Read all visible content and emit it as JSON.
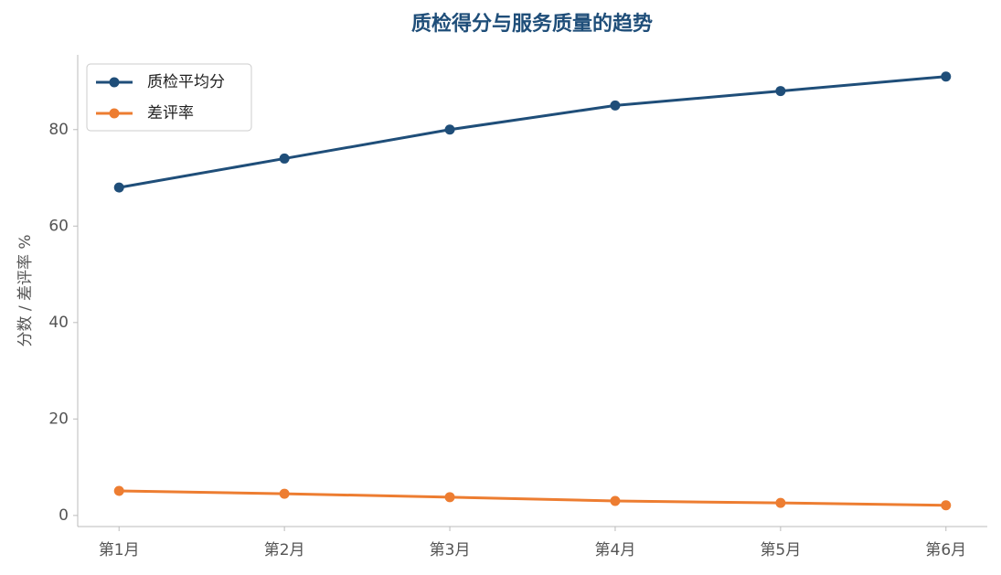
{
  "chart_data": {
    "type": "line",
    "title": "质检得分与服务质量的趋势",
    "y_label": "分数 / 差评率 %",
    "categories": [
      "第1月",
      "第2月",
      "第3月",
      "第4月",
      "第5月",
      "第6月"
    ],
    "series": [
      {
        "name": "质检平均分",
        "color": "#1f4e79",
        "values": [
          68,
          74,
          80,
          85,
          88,
          91
        ]
      },
      {
        "name": "差评率",
        "color": "#ed7d31",
        "values": [
          5.1,
          4.5,
          3.8,
          3.0,
          2.6,
          2.1
        ]
      }
    ],
    "ylim": [
      -2.3,
      95.5
    ],
    "yticks": [
      0,
      20,
      40,
      60,
      80
    ],
    "grid": false,
    "legend": "upper left"
  }
}
